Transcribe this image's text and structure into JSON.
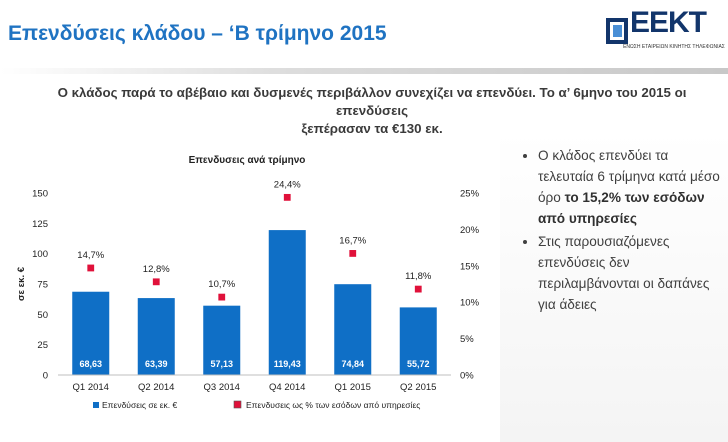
{
  "header": {
    "title": "Επενδύσεις κλάδου – ‘Β τρίμηνο 2015",
    "logo_text": "ΕΕΚΤ",
    "logo_subtitle": "ΕΝΩΣΗ ΕΤΑΙΡΕΙΩΝ ΚΙΝΗΤΗΣ ΤΗΛΕΦΩΝΙΑΣ"
  },
  "subtitle": {
    "line1": "Ο κλάδος παρά το αβέβαιο και δυσμενές περιβάλλον συνεχίζει να επενδύει. Το α’ 6μηνο του 2015 οι επενδύσεις",
    "line2": "ξεπέρασαν τα €130 εκ."
  },
  "side_text": {
    "bullet1_pre": "Ο κλάδος επενδύει τα τελευταία 6 τρίμηνα κατά μέσο όρο ",
    "bullet1_bold": "το 15,2% των εσόδων από υπηρεσίες",
    "bullet2": "Στις παρουσιαζόμενες επενδύσεις δεν περιλαμβάνονται οι δαπάνες για άδειες"
  },
  "colors": {
    "title": "#1f73c2",
    "bar": "#0f6fc6",
    "marker_fill": "#e0113a",
    "marker_border": "#ffffff"
  },
  "chart_data": {
    "type": "bar",
    "title": "Επενδυσεις ανά τρίμηνο",
    "categories": [
      "Q1 2014",
      "Q2 2014",
      "Q3 2014",
      "Q4 2014",
      "Q1 2015",
      "Q2 2015"
    ],
    "series": [
      {
        "name": "Επενδύσεις σε εκ. €",
        "type": "bar",
        "axis": "left",
        "values": [
          68.63,
          63.39,
          57.13,
          119.43,
          74.84,
          55.72
        ],
        "labels": [
          "68,63",
          "63,39",
          "57,13",
          "119,43",
          "74,84",
          "55,72"
        ]
      },
      {
        "name": "Επενδυσεις ως % των εσόδων από υπηρεσίες",
        "type": "marker",
        "axis": "right",
        "values": [
          14.7,
          12.8,
          10.7,
          24.4,
          16.7,
          11.8
        ],
        "labels": [
          "14,7%",
          "12,8%",
          "10,7%",
          "24,4%",
          "16,7%",
          "11,8%"
        ]
      }
    ],
    "ylabel": "σε εκ. €",
    "ylim": [
      0,
      150
    ],
    "y_ticks": [
      "0",
      "25",
      "50",
      "75",
      "100",
      "125",
      "150"
    ],
    "y2lim": [
      0,
      25
    ],
    "y2_ticks": [
      "0%",
      "5%",
      "10%",
      "15%",
      "20%",
      "25%"
    ],
    "grid": false,
    "legend": "bottom"
  }
}
